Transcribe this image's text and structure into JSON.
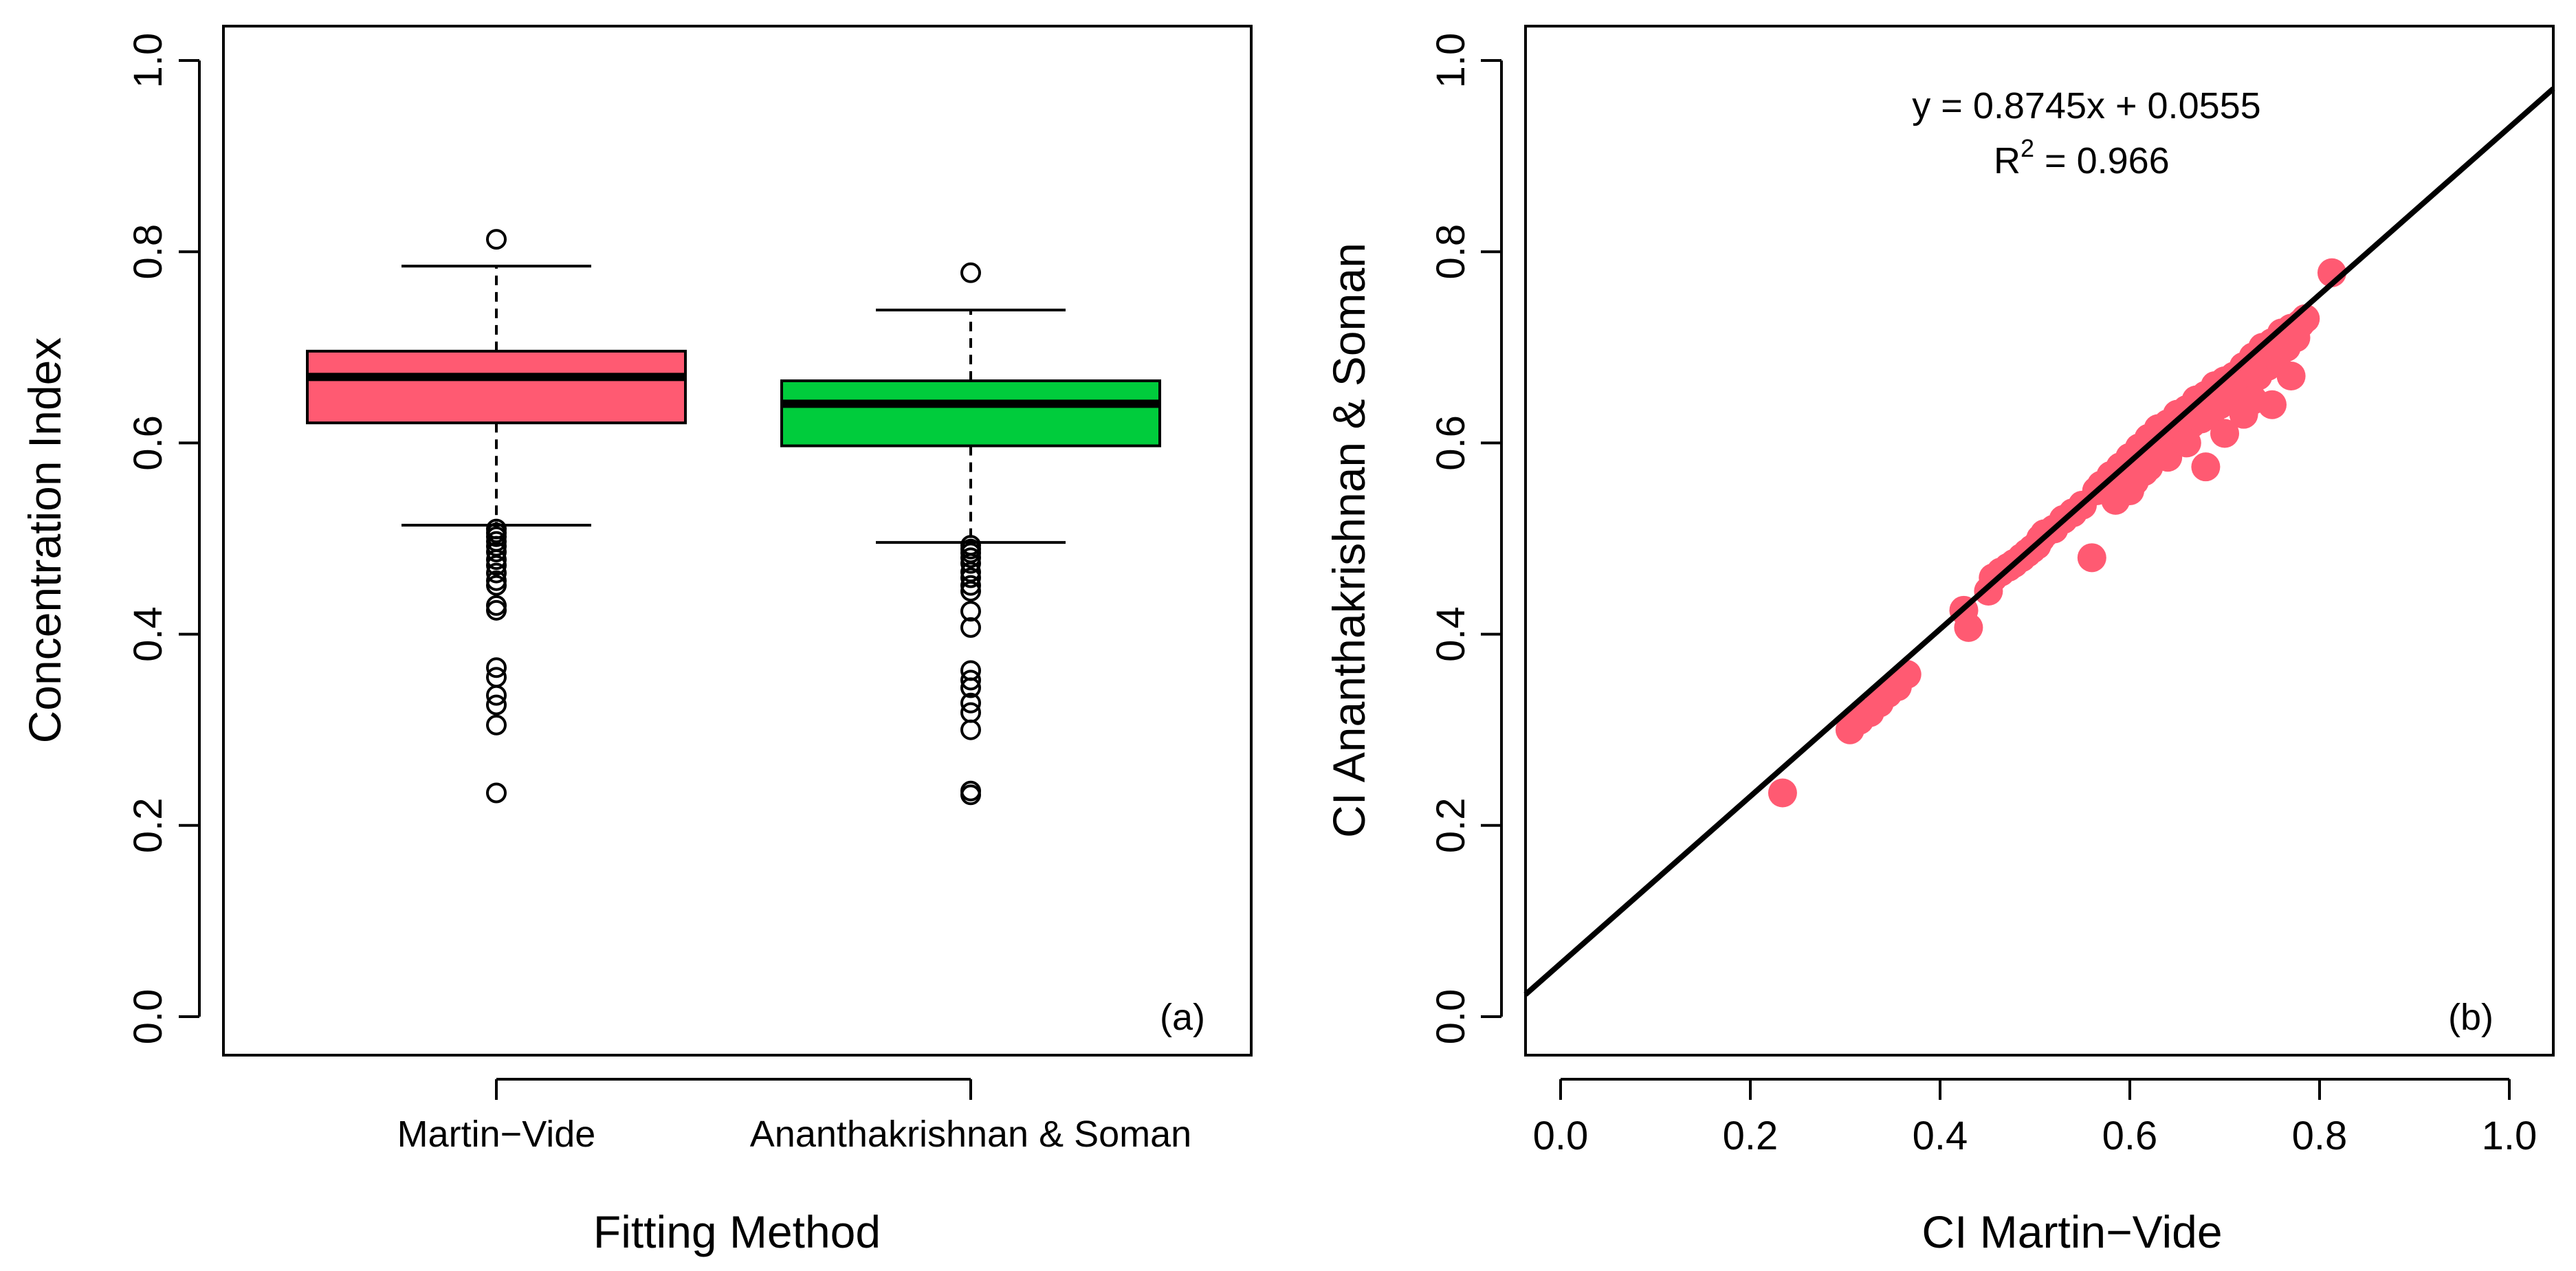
{
  "chart_data": [
    {
      "type": "box",
      "panel_label": "(a)",
      "xlabel": "Fitting Method",
      "ylabel": "Concentration Index",
      "ylim": [
        0,
        1
      ],
      "yticks": [
        "0.0",
        "0.2",
        "0.4",
        "0.6",
        "0.8",
        "1.0"
      ],
      "categories": [
        "Martin−Vide",
        "Ananthakrishnan & Soman"
      ],
      "boxes": [
        {
          "name": "Martin−Vide",
          "color": "#ff5a72",
          "whisker_low": 0.514,
          "q1": 0.621,
          "median": 0.669,
          "q3": 0.696,
          "whisker_high": 0.785,
          "outliers": [
            0.813,
            0.51,
            0.506,
            0.502,
            0.497,
            0.492,
            0.486,
            0.478,
            0.472,
            0.464,
            0.456,
            0.451,
            0.43,
            0.425,
            0.365,
            0.355,
            0.336,
            0.326,
            0.305,
            0.234
          ]
        },
        {
          "name": "Ananthakrishnan & Soman",
          "color": "#00cc3c",
          "whisker_low": 0.496,
          "q1": 0.597,
          "median": 0.641,
          "q3": 0.665,
          "whisker_high": 0.739,
          "outliers": [
            0.778,
            0.493,
            0.489,
            0.485,
            0.48,
            0.474,
            0.465,
            0.459,
            0.451,
            0.445,
            0.424,
            0.407,
            0.362,
            0.352,
            0.344,
            0.328,
            0.318,
            0.3,
            0.236,
            0.232
          ]
        }
      ]
    },
    {
      "type": "scatter",
      "panel_label": "(b)",
      "xlabel": "CI Martin−Vide",
      "ylabel": "CI Ananthakrishnan & Soman",
      "xlim": [
        0,
        1
      ],
      "ylim": [
        0,
        1
      ],
      "xticks": [
        "0.0",
        "0.2",
        "0.4",
        "0.6",
        "0.8",
        "1.0"
      ],
      "yticks": [
        "0.0",
        "0.2",
        "0.4",
        "0.6",
        "0.8",
        "1.0"
      ],
      "point_color": "#ff5a72",
      "equation": "y = 0.8745x + 0.0555",
      "r2_label": "R",
      "r2_exponent": "2",
      "r2_value": " = 0.966",
      "fit": {
        "slope": 0.8745,
        "intercept": 0.0555
      },
      "points": [
        [
          0.234,
          0.234
        ],
        [
          0.305,
          0.3
        ],
        [
          0.315,
          0.31
        ],
        [
          0.326,
          0.318
        ],
        [
          0.336,
          0.328
        ],
        [
          0.345,
          0.338
        ],
        [
          0.355,
          0.345
        ],
        [
          0.365,
          0.358
        ],
        [
          0.425,
          0.425
        ],
        [
          0.43,
          0.407
        ],
        [
          0.451,
          0.445
        ],
        [
          0.456,
          0.459
        ],
        [
          0.464,
          0.465
        ],
        [
          0.472,
          0.47
        ],
        [
          0.478,
          0.474
        ],
        [
          0.486,
          0.48
        ],
        [
          0.492,
          0.485
        ],
        [
          0.497,
          0.489
        ],
        [
          0.502,
          0.493
        ],
        [
          0.506,
          0.5
        ],
        [
          0.51,
          0.505
        ],
        [
          0.52,
          0.51
        ],
        [
          0.53,
          0.52
        ],
        [
          0.54,
          0.527
        ],
        [
          0.55,
          0.535
        ],
        [
          0.56,
          0.48
        ],
        [
          0.565,
          0.55
        ],
        [
          0.57,
          0.556
        ],
        [
          0.58,
          0.566
        ],
        [
          0.585,
          0.54
        ],
        [
          0.59,
          0.575
        ],
        [
          0.6,
          0.585
        ],
        [
          0.605,
          0.56
        ],
        [
          0.61,
          0.595
        ],
        [
          0.615,
          0.57
        ],
        [
          0.62,
          0.605
        ],
        [
          0.625,
          0.6
        ],
        [
          0.63,
          0.615
        ],
        [
          0.635,
          0.6
        ],
        [
          0.64,
          0.62
        ],
        [
          0.645,
          0.6
        ],
        [
          0.65,
          0.63
        ],
        [
          0.655,
          0.61
        ],
        [
          0.66,
          0.635
        ],
        [
          0.665,
          0.62
        ],
        [
          0.67,
          0.645
        ],
        [
          0.675,
          0.625
        ],
        [
          0.68,
          0.65
        ],
        [
          0.685,
          0.63
        ],
        [
          0.69,
          0.66
        ],
        [
          0.695,
          0.64
        ],
        [
          0.7,
          0.665
        ],
        [
          0.705,
          0.645
        ],
        [
          0.71,
          0.67
        ],
        [
          0.715,
          0.65
        ],
        [
          0.72,
          0.68
        ],
        [
          0.725,
          0.66
        ],
        [
          0.73,
          0.69
        ],
        [
          0.735,
          0.67
        ],
        [
          0.74,
          0.7
        ],
        [
          0.745,
          0.68
        ],
        [
          0.75,
          0.705
        ],
        [
          0.755,
          0.69
        ],
        [
          0.76,
          0.715
        ],
        [
          0.765,
          0.7
        ],
        [
          0.77,
          0.72
        ],
        [
          0.775,
          0.71
        ],
        [
          0.78,
          0.725
        ],
        [
          0.785,
          0.73
        ],
        [
          0.68,
          0.575
        ],
        [
          0.64,
          0.585
        ],
        [
          0.72,
          0.63
        ],
        [
          0.75,
          0.64
        ],
        [
          0.77,
          0.67
        ],
        [
          0.813,
          0.778
        ],
        [
          0.66,
          0.6
        ],
        [
          0.7,
          0.61
        ],
        [
          0.73,
          0.645
        ],
        [
          0.6,
          0.55
        ],
        [
          0.62,
          0.575
        ]
      ]
    }
  ]
}
